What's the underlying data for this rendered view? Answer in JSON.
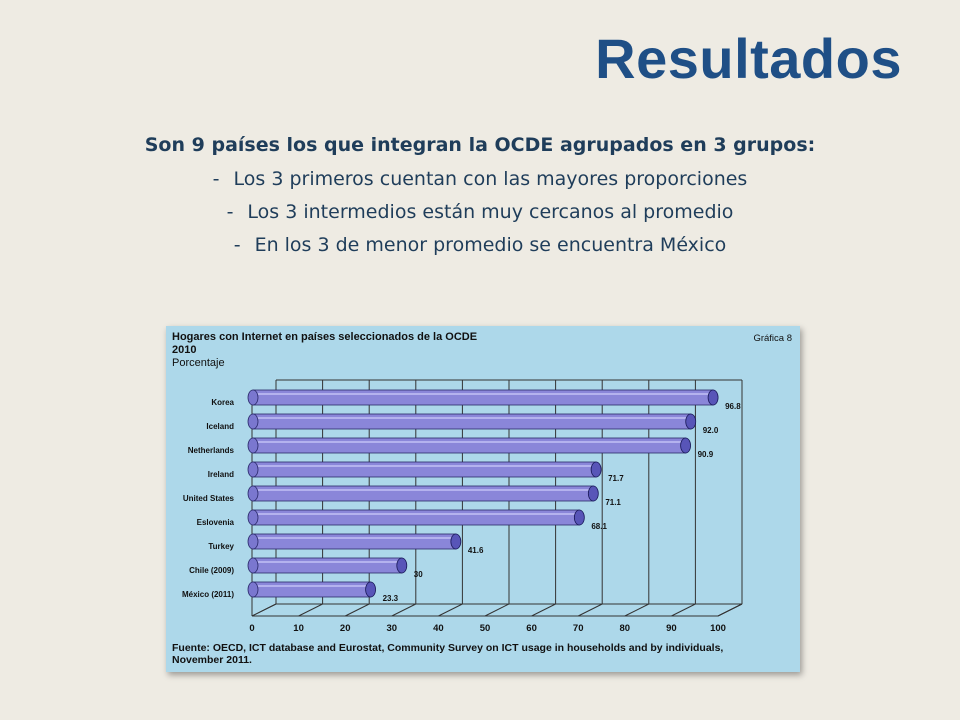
{
  "slide": {
    "title": "Resultados",
    "lead": "Son 9 países los que integran la OCDE agrupados en 3 grupos:",
    "bullets": [
      "Los 3 primeros cuentan con las mayores proporciones",
      "Los 3 intermedios están muy cercanos al promedio",
      "En los 3 de menor promedio se encuentra México"
    ],
    "bullet_marker": "-"
  },
  "chart_data": {
    "type": "bar",
    "orientation": "horizontal",
    "title": "Hogares con Internet en países seleccionados de la OCDE",
    "year": "2010",
    "unit_label": "Porcentaje",
    "figure_ref": "Gráfica 8",
    "categories": [
      "Korea",
      "Iceland",
      "Netherlands",
      "Ireland",
      "United States",
      "Eslovenia",
      "Turkey",
      "Chile (2009)",
      "México (2011)"
    ],
    "values": [
      96.8,
      92.0,
      90.9,
      71.7,
      71.1,
      68.1,
      41.6,
      30,
      23.3
    ],
    "value_labels": [
      "96.8",
      "92.0",
      "90.9",
      "71.7",
      "71.1",
      "68.1",
      "41.6",
      "30",
      "23.3"
    ],
    "xlim": [
      0,
      100
    ],
    "xticks": [
      "0",
      "10",
      "20",
      "30",
      "40",
      "50",
      "60",
      "70",
      "80",
      "90",
      "100"
    ],
    "grid": true,
    "source": "Fuente: OECD, ICT database and Eurostat, Community Survey on ICT usage in households and by individuals, November 2011.",
    "colors": {
      "background": "#add8ea",
      "bar": "#8a86d9",
      "bar_cap": "#5855b8",
      "grid": "#333333"
    }
  }
}
